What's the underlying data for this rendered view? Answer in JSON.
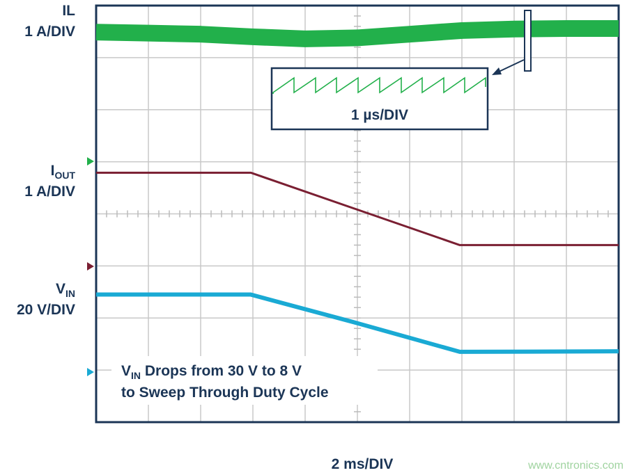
{
  "chart_data": {
    "type": "line",
    "xlim": [
      0,
      10
    ],
    "ylim": [
      0,
      8
    ],
    "series": [
      {
        "label": [
          "IL"
        ],
        "scale": "1 A/DIV",
        "color": "#22b04b",
        "width": 24,
        "x": [
          0,
          1,
          2,
          3,
          4,
          5,
          6,
          7,
          8,
          9,
          10
        ],
        "values": [
          7.49,
          7.47,
          7.45,
          7.4,
          7.36,
          7.38,
          7.45,
          7.52,
          7.55,
          7.56,
          7.56
        ]
      },
      {
        "label": [
          "I",
          "OUT"
        ],
        "scale": "1 A/DIV",
        "color": "#7a1f32",
        "width": 3,
        "x": [
          0,
          2.96,
          6.96,
          10
        ],
        "values": [
          4.79,
          4.79,
          3.4,
          3.4
        ]
      },
      {
        "label": [
          "V",
          "IN"
        ],
        "scale": "20 V/DIV",
        "color": "#1aaad4",
        "width": 6,
        "x": [
          0,
          2.96,
          5,
          6.96,
          10
        ],
        "values": [
          2.45,
          2.45,
          1.9,
          1.35,
          1.36
        ]
      }
    ],
    "inset_label": "1 µs/DIV",
    "annotation": {
      "line1": [
        "V",
        "IN",
        " Drops from 30 V to 8 V"
      ],
      "line2": "to Sweep Through Duty Cycle"
    },
    "xlabel": "2 ms/DIV",
    "watermark": "www.cntronics.com"
  }
}
